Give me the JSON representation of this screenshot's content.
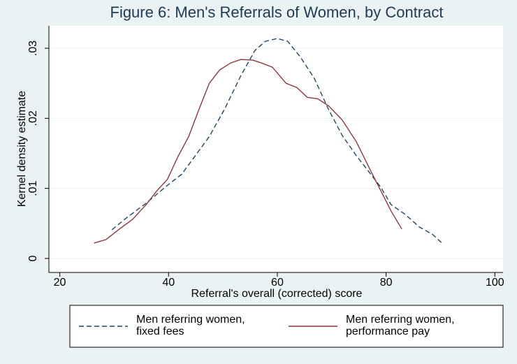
{
  "chart_data": {
    "type": "line",
    "title": "Figure 6: Men's Referrals of Women, by Contract",
    "xlabel": "Referral's overall (corrected) score",
    "ylabel": "Kernel density estimate",
    "xlim": [
      18,
      101.5
    ],
    "xticks": [
      20,
      40,
      60,
      80,
      100
    ],
    "ylim": [
      -0.002,
      0.0332
    ],
    "yticks": [
      0,
      {
        "value": 0.01,
        "label": ".01"
      },
      {
        "value": 0.02,
        "label": ".02"
      },
      {
        "value": 0.03,
        "label": ".03"
      }
    ],
    "grid": true,
    "legend": "bottom",
    "series": [
      {
        "name": "Men referring women, fixed fees",
        "color": "#1a476f",
        "dash": true,
        "x": [
          29.6,
          32.1,
          35.9,
          39.9,
          42.4,
          44.3,
          47.5,
          50.3,
          53.3,
          55.9,
          57.8,
          60,
          61.9,
          64.2,
          66.8,
          69.4,
          71.9,
          74.5,
          77.1,
          79.0,
          80.9,
          83.5,
          86.1,
          88.6,
          90.4
        ],
        "values": [
          0.0041,
          0.0057,
          0.0079,
          0.0105,
          0.012,
          0.014,
          0.0174,
          0.0213,
          0.0261,
          0.0297,
          0.031,
          0.0314,
          0.031,
          0.0288,
          0.0257,
          0.0213,
          0.0176,
          0.0147,
          0.0121,
          0.0102,
          0.0077,
          0.0063,
          0.0045,
          0.0034,
          0.0021
        ]
      },
      {
        "name": "Men referring women, performance pay",
        "color": "#90353b",
        "dash": false,
        "x": [
          26.3,
          28.5,
          30.8,
          33.4,
          35.9,
          37.9,
          39.8,
          41.7,
          43.7,
          45.6,
          47.5,
          49.4,
          51.4,
          53.3,
          55.5,
          57.1,
          59.1,
          60.4,
          61.6,
          63.6,
          65.5,
          67.4,
          69.4,
          71.9,
          74.5,
          77.1,
          79.0,
          80.9,
          82.9
        ],
        "values": [
          0.0022,
          0.0027,
          0.0041,
          0.0056,
          0.0077,
          0.0097,
          0.0113,
          0.0145,
          0.0174,
          0.0213,
          0.025,
          0.0269,
          0.0279,
          0.0284,
          0.0283,
          0.0279,
          0.0273,
          0.0261,
          0.025,
          0.0244,
          0.023,
          0.0228,
          0.0218,
          0.0198,
          0.0167,
          0.0126,
          0.0097,
          0.0068,
          0.0042
        ]
      }
    ]
  }
}
